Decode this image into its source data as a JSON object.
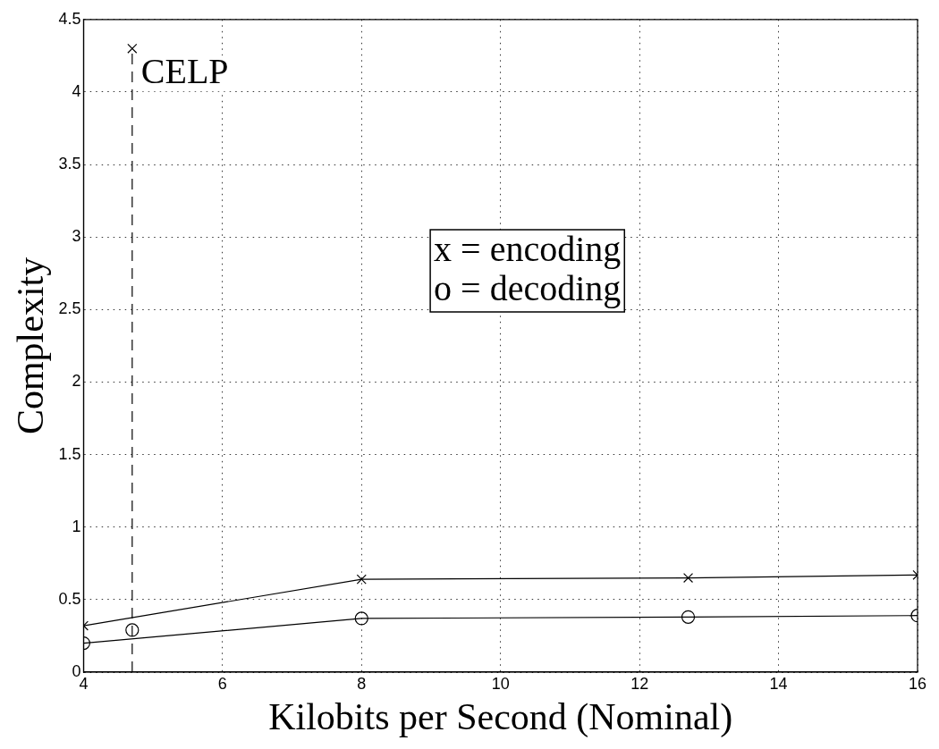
{
  "chart_data": {
    "type": "line",
    "xlabel": "Kilobits per Second (Nominal)",
    "ylabel": "Complexity",
    "xlim": [
      4,
      16
    ],
    "xticks": [
      4,
      6,
      8,
      10,
      12,
      14,
      16
    ],
    "ylim": [
      0,
      4.5
    ],
    "yticks": [
      0,
      0.5,
      1,
      1.5,
      2,
      2.5,
      3,
      3.5,
      4,
      4.5
    ],
    "grid": true,
    "series": [
      {
        "color": "#000000",
        "marker": "cross",
        "line_style": "solid",
        "x": [
          4,
          8,
          12.7,
          16
        ],
        "values": [
          0.32,
          0.64,
          0.65,
          0.67
        ]
      },
      {
        "color": "#000000",
        "marker": "circle",
        "line_style": "solid",
        "x": [
          4,
          8,
          12.7,
          16
        ],
        "values": [
          0.2,
          0.37,
          0.38,
          0.39
        ]
      },
      {
        "color": "#000000",
        "marker": "none",
        "line_style": "dashed",
        "x": [
          4.7,
          4.7
        ],
        "values": [
          0,
          4.3
        ]
      },
      {
        "type": "scatter",
        "color": "#000000",
        "marker": "cross",
        "x": [
          4.7
        ],
        "values": [
          4.3
        ]
      },
      {
        "type": "scatter",
        "color": "#000000",
        "marker": "circle",
        "x": [
          4.7
        ],
        "values": [
          0.29
        ]
      }
    ],
    "annotations": [
      {
        "text": "CELP",
        "x": 4.7,
        "y": 4.3
      },
      "x = encoding\no = decoding"
    ]
  }
}
